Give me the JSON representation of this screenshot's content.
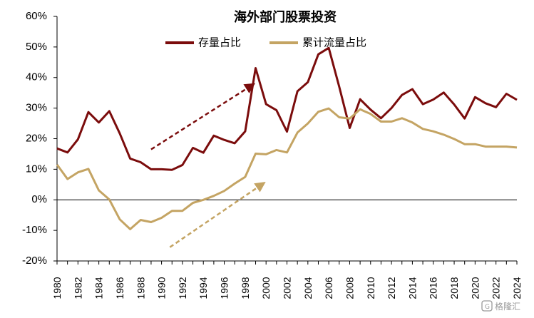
{
  "chart_data": {
    "type": "line",
    "title": "海外部门股票投资",
    "x": [
      1980,
      1981,
      1982,
      1983,
      1984,
      1985,
      1986,
      1987,
      1988,
      1989,
      1990,
      1991,
      1992,
      1993,
      1994,
      1995,
      1996,
      1997,
      1998,
      1999,
      2000,
      2001,
      2002,
      2003,
      2004,
      2005,
      2006,
      2007,
      2008,
      2009,
      2010,
      2011,
      2012,
      2013,
      2014,
      2015,
      2016,
      2017,
      2018,
      2019,
      2020,
      2021,
      2022,
      2023,
      2024
    ],
    "xticks": [
      "1980",
      "1982",
      "1984",
      "1986",
      "1988",
      "1990",
      "1992",
      "1994",
      "1996",
      "1998",
      "2000",
      "2002",
      "2004",
      "2006",
      "2008",
      "2010",
      "2012",
      "2014",
      "2016",
      "2018",
      "2020",
      "2022",
      "2024"
    ],
    "ylim": [
      -20,
      60
    ],
    "yticks": [
      -20,
      -10,
      0,
      10,
      20,
      30,
      40,
      50,
      60
    ],
    "ytick_labels": [
      "-20%",
      "-10%",
      "0%",
      "10%",
      "20%",
      "30%",
      "40%",
      "50%",
      "60%"
    ],
    "series": [
      {
        "name": "存量占比",
        "color": "#7B0C0C",
        "values": [
          16.8,
          15.5,
          19.8,
          28.7,
          25.3,
          29,
          21.7,
          13.5,
          12.3,
          10,
          10,
          9.8,
          11.4,
          17,
          15.4,
          21,
          19.6,
          18.5,
          22.4,
          43.1,
          31.3,
          29.3,
          22.3,
          35.5,
          38.5,
          47.6,
          49.7,
          37,
          23.5,
          32.9,
          29.5,
          26.7,
          30,
          34.3,
          36.2,
          31.3,
          32.8,
          35.1,
          31.2,
          26.6,
          33.6,
          31.6,
          30.3,
          34.7,
          32.7
        ]
      },
      {
        "name": "累计流量占比",
        "color": "#C4A463",
        "values": [
          11.5,
          6.8,
          9,
          10.1,
          3.1,
          0.1,
          -6.4,
          -9.6,
          -6.6,
          -7.3,
          -5.9,
          -3.6,
          -3.6,
          -1,
          0,
          1.3,
          2.9,
          5.3,
          7.5,
          15.1,
          14.9,
          16.3,
          15.5,
          22,
          25,
          28.8,
          29.9,
          27,
          26.6,
          29.6,
          28.1,
          25.6,
          25.6,
          26.7,
          25.3,
          23.2,
          22.4,
          21.3,
          19.9,
          18.2,
          18.2,
          17.4,
          17.4,
          17.4,
          17.1
        ]
      }
    ],
    "annotations": [
      {
        "type": "arrow",
        "style": "dashed",
        "color": "#7B0C0C",
        "from": [
          1989,
          16.5
        ],
        "to": [
          1998.8,
          37.8
        ]
      },
      {
        "type": "arrow",
        "style": "dashed",
        "color": "#C4A463",
        "from": [
          1990.8,
          -15.5
        ],
        "to": [
          1999.8,
          5.5
        ]
      }
    ],
    "watermark": "格隆汇"
  }
}
